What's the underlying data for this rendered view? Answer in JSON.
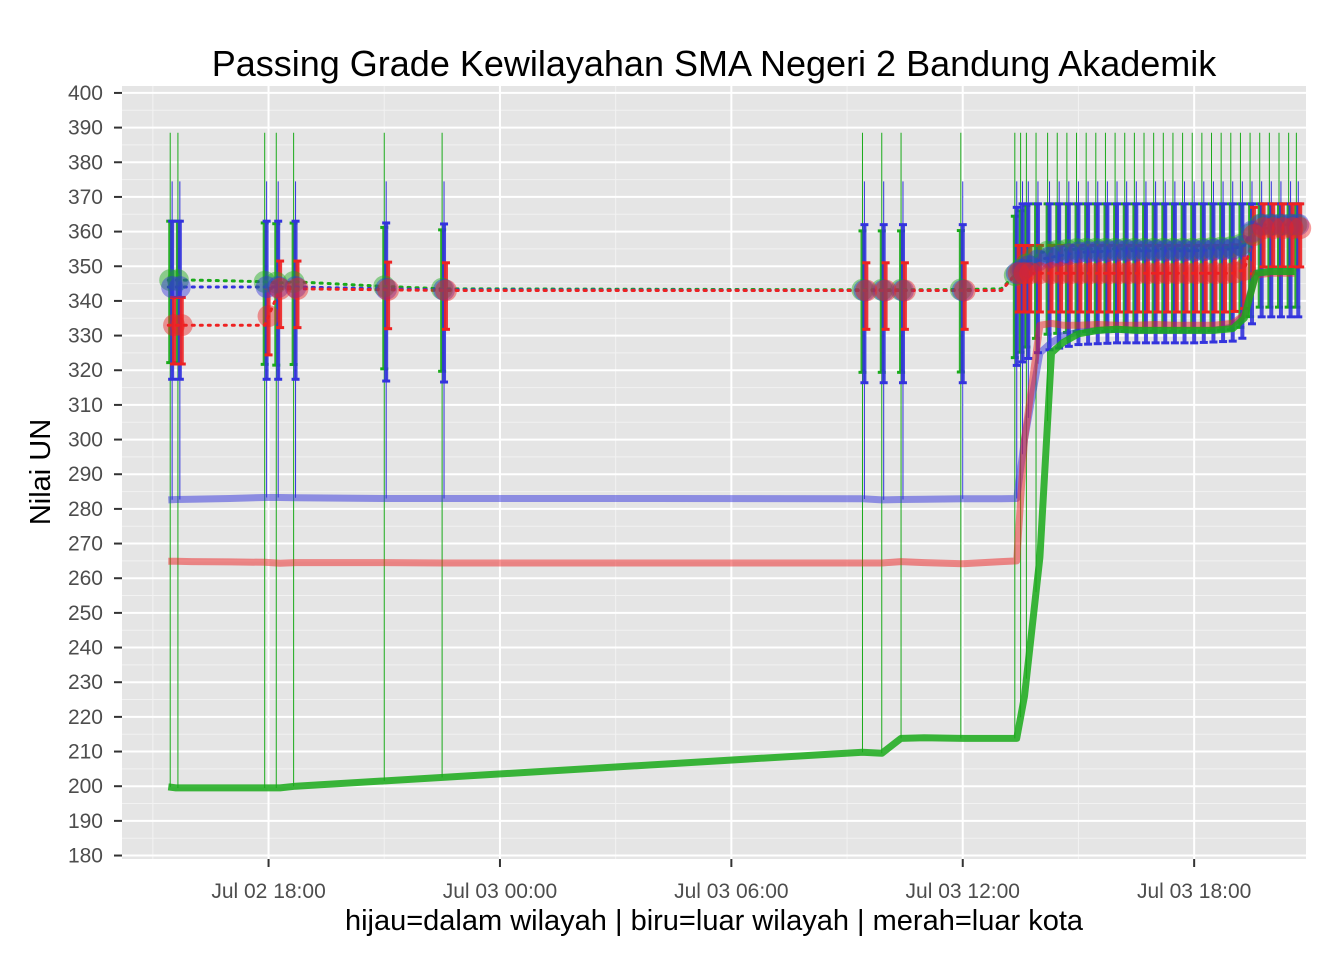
{
  "chart_data": {
    "type": "line",
    "title": "Passing Grade Kewilayahan SMA Negeri 2 Bandung Akademik",
    "xlabel": "hijau=dalam wilayah | biru=luar wilayah | merah=luar kota",
    "ylabel": "Nilai UN",
    "x_unit": "hours since Jul 02 00:00",
    "xlim": [
      14.2,
      44.9
    ],
    "ylim": [
      179,
      402
    ],
    "grid": true,
    "x_ticks": [
      {
        "label": "Jul 02 18:00",
        "value": 18
      },
      {
        "label": "Jul 03 00:00",
        "value": 24
      },
      {
        "label": "Jul 03 06:00",
        "value": 30
      },
      {
        "label": "Jul 03 12:00",
        "value": 36
      },
      {
        "label": "Jul 03 18:00",
        "value": 42
      }
    ],
    "y_ticks": [
      "180",
      "190",
      "200",
      "210",
      "220",
      "230",
      "240",
      "250",
      "260",
      "270",
      "280",
      "290",
      "300",
      "310",
      "320",
      "330",
      "340",
      "350",
      "360",
      "370",
      "380",
      "390",
      "400"
    ],
    "colors": {
      "dalam_wilayah": "#1aaa1a",
      "luar_wilayah": "#3333dd",
      "luar_kota": "#ee2222",
      "panel": "#e5e5e5",
      "grid": "#ffffff"
    },
    "min_series": [
      {
        "name": "hijau=dalam wilayah",
        "color": "#1aaa1a",
        "x": [
          15.4,
          15.6,
          16.0,
          17.0,
          17.9,
          18.3,
          18.7,
          33.4,
          33.9,
          34.4,
          35.0,
          36.0,
          37.0,
          37.4,
          37.6,
          38.0,
          38.3,
          38.6,
          39.0,
          39.5,
          40.0,
          40.5,
          41.0,
          41.5,
          42.0,
          42.5,
          43.0,
          43.3,
          43.6,
          44.0,
          44.6
        ],
        "y": [
          199.8,
          199.5,
          199.5,
          199.5,
          199.5,
          199.5,
          200.0,
          209.8,
          209.5,
          213.8,
          214.0,
          213.8,
          213.8,
          213.8,
          226.0,
          266.0,
          325.0,
          328.0,
          330.5,
          331.5,
          331.8,
          331.5,
          331.5,
          331.5,
          331.5,
          331.5,
          332.0,
          335.0,
          348.0,
          348.5,
          348.5
        ]
      },
      {
        "name": "biru=luar wilayah",
        "color": "#3333dd",
        "x": [
          15.4,
          15.6,
          16.0,
          17.0,
          17.9,
          18.3,
          18.7,
          21.0,
          22.5,
          28.0,
          33.4,
          33.9,
          34.4,
          35.0,
          36.0,
          37.0,
          37.4,
          37.6,
          38.0,
          38.3,
          38.6,
          39.0,
          39.5,
          40.0,
          40.5,
          41.0,
          41.5,
          42.0,
          42.5,
          43.0,
          43.3,
          43.6,
          44.0,
          44.6
        ],
        "y": [
          282.6,
          282.7,
          282.8,
          283.0,
          283.3,
          283.3,
          283.2,
          283.0,
          283.0,
          283.0,
          282.9,
          282.6,
          282.7,
          282.8,
          282.9,
          282.9,
          283.0,
          300.0,
          325.0,
          328.0,
          330.0,
          331.0,
          331.5,
          331.8,
          331.5,
          331.5,
          331.5,
          331.5,
          331.5,
          332.5,
          336.0,
          348.0,
          348.5,
          348.5
        ]
      },
      {
        "name": "merah=luar kota",
        "color": "#ee2222",
        "x": [
          15.4,
          15.6,
          16.0,
          17.0,
          17.9,
          18.3,
          18.7,
          21.0,
          22.5,
          28.0,
          33.4,
          33.9,
          34.4,
          35.0,
          36.0,
          37.0,
          37.4,
          37.6,
          38.0,
          38.3,
          38.6,
          39.0,
          39.5,
          40.0,
          40.5,
          41.0,
          41.5,
          42.0,
          42.5,
          43.0,
          43.3,
          43.6,
          44.0,
          44.6
        ],
        "y": [
          264.9,
          264.9,
          264.8,
          264.7,
          264.6,
          264.3,
          264.5,
          264.5,
          264.4,
          264.4,
          264.4,
          264.4,
          264.8,
          264.5,
          264.2,
          264.8,
          265.0,
          300.0,
          333.0,
          333.5,
          333.0,
          333.0,
          333.2,
          333.0,
          333.0,
          333.2,
          333.0,
          333.0,
          333.0,
          333.5,
          336.0,
          347.5,
          348.0,
          348.0
        ]
      }
    ],
    "median_series": [
      {
        "name": "hijau=dalam wilayah",
        "color": "#1aaa1a",
        "x": [
          15.4,
          15.6,
          16.0,
          17.0,
          17.9,
          18.3,
          18.7,
          21.0,
          22.5,
          33.4,
          33.9,
          34.4,
          36.0,
          37.0,
          37.4,
          38.0,
          39.0,
          40.0,
          41.0,
          42.0,
          43.0,
          43.3,
          43.6,
          44.0,
          44.6
        ],
        "y": [
          346.0,
          346.0,
          346.0,
          345.8,
          345.5,
          345.2,
          345.5,
          344.2,
          343.5,
          343.2,
          343.2,
          343.2,
          343.3,
          343.5,
          348.0,
          354.0,
          355.0,
          355.0,
          355.0,
          355.0,
          355.5,
          356.5,
          362.0,
          362.0,
          362.0
        ]
      },
      {
        "name": "biru=luar wilayah",
        "color": "#3333dd",
        "x": [
          15.4,
          15.6,
          16.0,
          17.0,
          17.9,
          18.3,
          18.7,
          21.0,
          22.5,
          33.4,
          33.9,
          34.4,
          36.0,
          37.0,
          37.4,
          38.0,
          39.0,
          40.0,
          41.0,
          42.0,
          43.0,
          43.3,
          43.6,
          44.0,
          44.6
        ],
        "y": [
          344.0,
          344.0,
          344.0,
          344.0,
          344.0,
          344.0,
          344.0,
          343.5,
          343.2,
          343.0,
          343.0,
          343.0,
          343.0,
          343.0,
          348.0,
          352.0,
          354.0,
          354.5,
          354.5,
          354.5,
          355.0,
          356.0,
          362.0,
          362.0,
          362.0
        ]
      },
      {
        "name": "merah=luar kota",
        "color": "#ee2222",
        "x": [
          15.4,
          15.6,
          16.0,
          17.0,
          17.9,
          18.3,
          18.7,
          21.0,
          22.5,
          33.4,
          33.9,
          34.4,
          36.0,
          37.0,
          37.4,
          38.0,
          39.0,
          40.0,
          41.0,
          42.0,
          43.0,
          43.3,
          43.6,
          44.0,
          44.6
        ],
        "y": [
          333.0,
          333.0,
          333.0,
          333.0,
          333.0,
          343.5,
          343.5,
          343.2,
          343.0,
          343.0,
          343.0,
          343.0,
          343.0,
          343.0,
          348.0,
          348.0,
          348.0,
          348.0,
          348.0,
          348.0,
          348.0,
          349.0,
          361.0,
          361.0,
          361.0
        ]
      }
    ],
    "range_bars": {
      "hijau_x": [
        15.45,
        15.65,
        17.9,
        18.2,
        18.65,
        21.0,
        22.5,
        33.4,
        33.9,
        34.4,
        35.95,
        37.35,
        37.5,
        37.65,
        37.9,
        38.2,
        38.45,
        38.7,
        38.95,
        39.2,
        39.45,
        39.7,
        39.95,
        40.2,
        40.45,
        40.7,
        40.95,
        41.2,
        41.45,
        41.7,
        41.95,
        42.2,
        42.45,
        42.7,
        42.95,
        43.2,
        43.45,
        43.7,
        43.95,
        44.2,
        44.45,
        44.65
      ],
      "biru_x": [
        15.5,
        15.7,
        17.95,
        18.25,
        18.7,
        21.05,
        22.55,
        33.45,
        33.95,
        34.45,
        36.0,
        37.4,
        37.55,
        37.7,
        37.95,
        38.25,
        38.5,
        38.75,
        39.0,
        39.25,
        39.5,
        39.75,
        40.0,
        40.25,
        40.5,
        40.75,
        41.0,
        41.25,
        41.5,
        41.75,
        42.0,
        42.25,
        42.5,
        42.75,
        43.0,
        43.25,
        43.5,
        43.75,
        44.0,
        44.25,
        44.5,
        44.7
      ],
      "merah_x": [
        15.55,
        15.75,
        18.0,
        18.3,
        18.75,
        21.1,
        22.6,
        33.5,
        34.0,
        34.5,
        36.05,
        37.45,
        37.6,
        37.75,
        38.0,
        38.3,
        38.55,
        38.8,
        39.05,
        39.3,
        39.55,
        39.8,
        40.05,
        40.3,
        40.55,
        40.8,
        41.05,
        41.3,
        41.55,
        41.8,
        42.05,
        42.3,
        42.55,
        42.8,
        43.05,
        43.3,
        43.55,
        43.8,
        44.05,
        44.3,
        44.55,
        44.75
      ],
      "green_top": 388.5,
      "blue_top": 374.5,
      "blue_bottom_early": 283.0
    }
  }
}
